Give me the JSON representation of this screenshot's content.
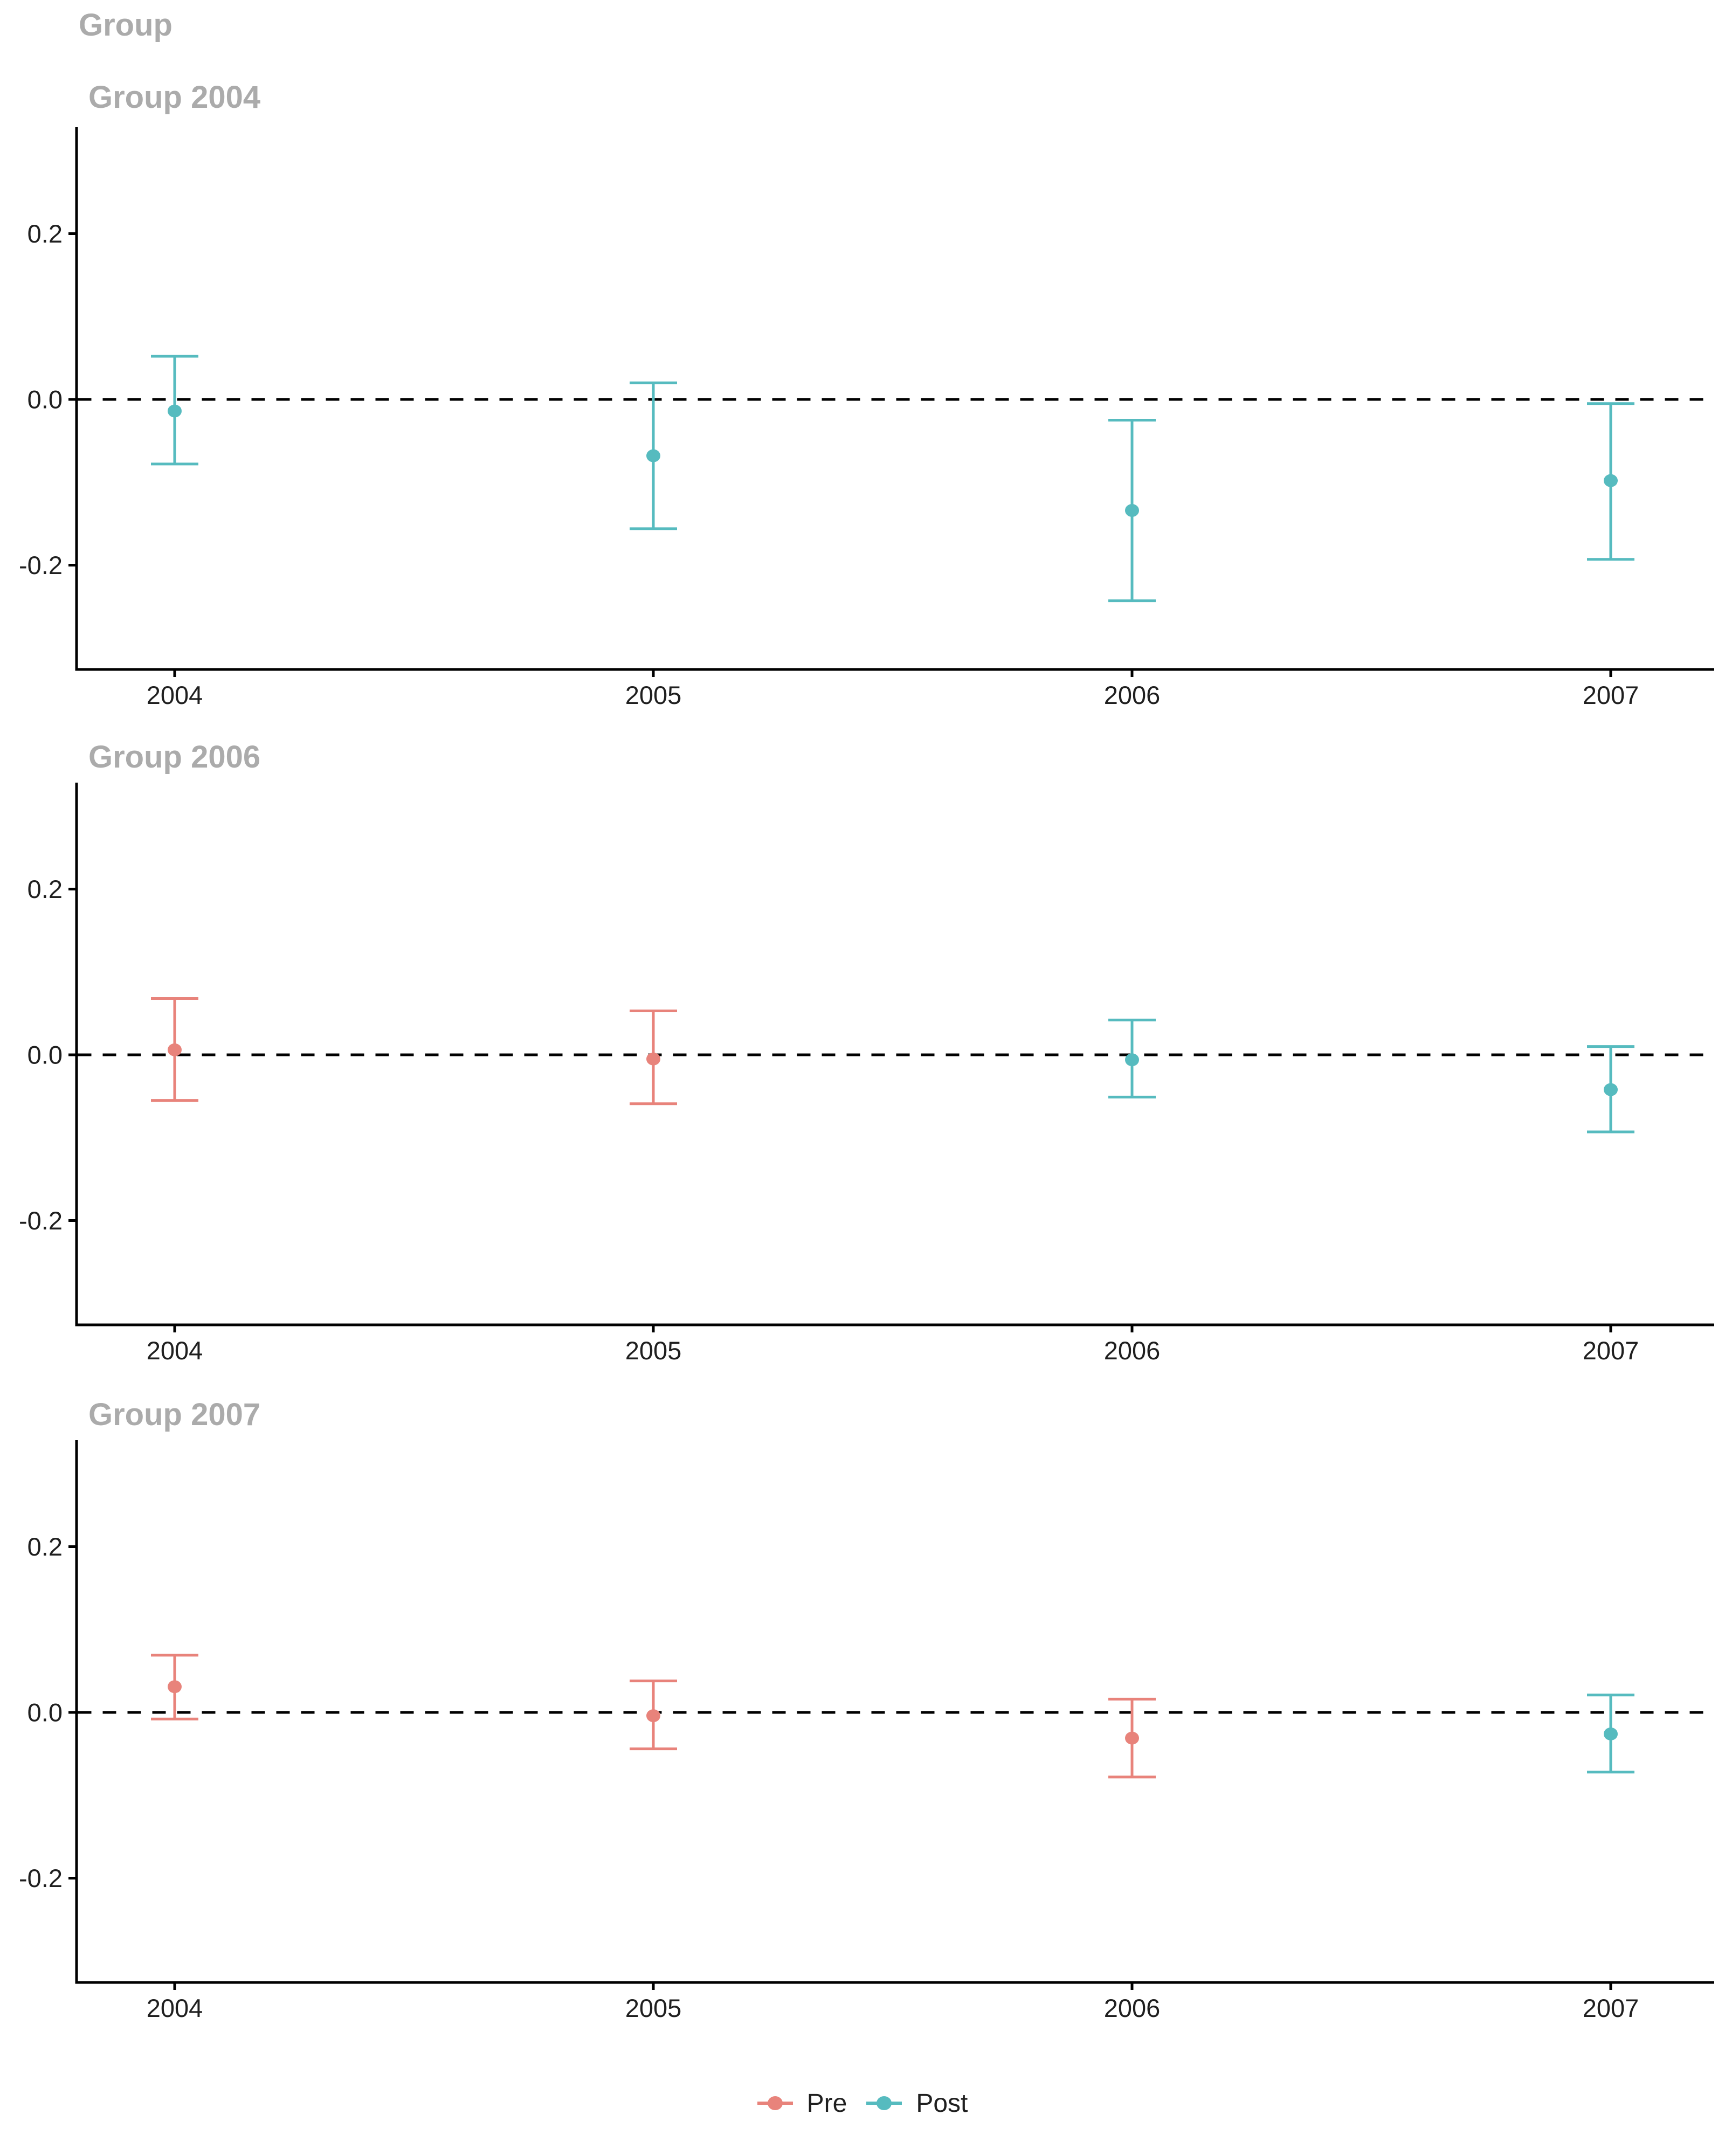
{
  "title": "Group",
  "colors": {
    "pre": "#E8837B",
    "post": "#56BBBF",
    "title_gray": "#ABABAB",
    "axis_text": "#1f1f1f",
    "axis_line": "#000000"
  },
  "legend": {
    "items": [
      {
        "label": "Pre",
        "color": "#E8837B"
      },
      {
        "label": "Post",
        "color": "#56BBBF"
      }
    ]
  },
  "chart_data": {
    "type": "errorbar",
    "title": "Group",
    "x": [
      "2004",
      "2005",
      "2006",
      "2007"
    ],
    "yticks": [
      "0.2",
      "0.0",
      "-0.2"
    ],
    "ytick_values": [
      0.2,
      0.0,
      -0.2
    ],
    "ylim": [
      -0.33,
      0.33
    ],
    "zero_reference_line": "dashed",
    "legend_position": "bottom",
    "facets": [
      {
        "title": "Group 2004",
        "points": [
          {
            "year": "2004",
            "phase": "Post",
            "est": -0.014,
            "lo": -0.078,
            "hi": 0.052
          },
          {
            "year": "2005",
            "phase": "Post",
            "est": -0.068,
            "lo": -0.156,
            "hi": 0.02
          },
          {
            "year": "2006",
            "phase": "Post",
            "est": -0.134,
            "lo": -0.243,
            "hi": -0.025
          },
          {
            "year": "2007",
            "phase": "Post",
            "est": -0.098,
            "lo": -0.193,
            "hi": -0.005
          }
        ]
      },
      {
        "title": "Group 2006",
        "points": [
          {
            "year": "2004",
            "phase": "Pre",
            "est": 0.006,
            "lo": -0.055,
            "hi": 0.068
          },
          {
            "year": "2005",
            "phase": "Pre",
            "est": -0.005,
            "lo": -0.059,
            "hi": 0.053
          },
          {
            "year": "2006",
            "phase": "Post",
            "est": -0.006,
            "lo": -0.051,
            "hi": 0.042
          },
          {
            "year": "2007",
            "phase": "Post",
            "est": -0.042,
            "lo": -0.093,
            "hi": 0.01
          }
        ]
      },
      {
        "title": "Group 2007",
        "points": [
          {
            "year": "2004",
            "phase": "Pre",
            "est": 0.031,
            "lo": -0.008,
            "hi": 0.069
          },
          {
            "year": "2005",
            "phase": "Pre",
            "est": -0.004,
            "lo": -0.044,
            "hi": 0.038
          },
          {
            "year": "2006",
            "phase": "Pre",
            "est": -0.031,
            "lo": -0.078,
            "hi": 0.016
          },
          {
            "year": "2007",
            "phase": "Post",
            "est": -0.026,
            "lo": -0.072,
            "hi": 0.021
          }
        ]
      }
    ]
  }
}
